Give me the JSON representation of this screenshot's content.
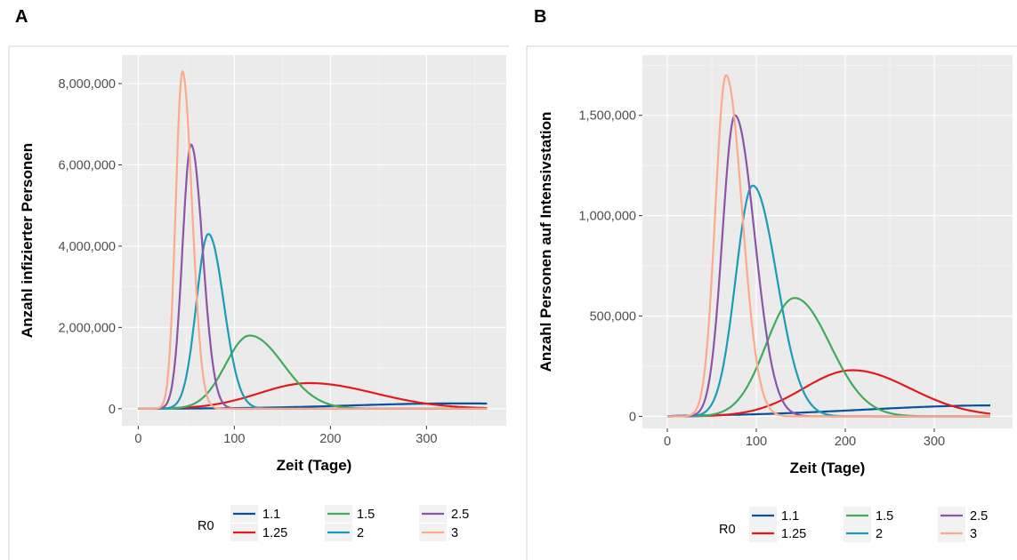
{
  "panels": [
    {
      "letter": "A"
    },
    {
      "letter": "B"
    }
  ],
  "chart_data": [
    {
      "type": "line",
      "panel": "A",
      "xlabel": "Zeit (Tage)",
      "ylabel": "Anzahl infizierter Personen",
      "xlim": [
        -17,
        383
      ],
      "ylim": [
        -420000,
        8700000
      ],
      "xticks": [
        0,
        100,
        200,
        300
      ],
      "xtick_labels": [
        "0",
        "100",
        "200",
        "300"
      ],
      "yticks": [
        0,
        2000000,
        4000000,
        6000000,
        8000000
      ],
      "ytick_labels": [
        "0",
        "2,000,000",
        "4,000,000",
        "6,000,000",
        "8,000,000"
      ],
      "grid": true,
      "legend": {
        "title": "R0",
        "position": "bottom"
      },
      "series": [
        {
          "name": "1.1",
          "color": "#08519c",
          "peak_x": 330,
          "peak_y": 130000,
          "sigma_left": 110,
          "sigma_right": 150
        },
        {
          "name": "1.25",
          "color": "#e31a1c",
          "peak_x": 178,
          "peak_y": 630000,
          "sigma_left": 52,
          "sigma_right": 68
        },
        {
          "name": "1.5",
          "color": "#41ab5d",
          "peak_x": 116,
          "peak_y": 1800000,
          "sigma_left": 25,
          "sigma_right": 35
        },
        {
          "name": "2",
          "color": "#1b9cb8",
          "peak_x": 73,
          "peak_y": 4300000,
          "sigma_left": 12.5,
          "sigma_right": 16
        },
        {
          "name": "2.5",
          "color": "#8b55a8",
          "peak_x": 55,
          "peak_y": 6500000,
          "sigma_left": 9,
          "sigma_right": 12
        },
        {
          "name": "3",
          "color": "#fcaa8a",
          "peak_x": 46,
          "peak_y": 8300000,
          "sigma_left": 7,
          "sigma_right": 10
        }
      ]
    },
    {
      "type": "line",
      "panel": "B",
      "xlabel": "Zeit (Tage)",
      "ylabel": "Anzahl Personen auf Intensivstation",
      "xlim": [
        -28,
        388
      ],
      "ylim": [
        -60000,
        1800000
      ],
      "xticks": [
        0,
        100,
        200,
        300
      ],
      "xtick_labels": [
        "0",
        "100",
        "200",
        "300"
      ],
      "yticks": [
        0,
        500000,
        1000000,
        1500000
      ],
      "ytick_labels": [
        "0",
        "500,000",
        "1,000,000",
        "1,500,000"
      ],
      "grid": true,
      "legend": {
        "title": "R0",
        "position": "bottom"
      },
      "series": [
        {
          "name": "1.1",
          "color": "#08519c",
          "peak_x": 370,
          "peak_y": 55000,
          "sigma_left": 150,
          "sigma_right": 80
        },
        {
          "name": "1.25",
          "color": "#e31a1c",
          "peak_x": 208,
          "peak_y": 230000,
          "sigma_left": 55,
          "sigma_right": 65
        },
        {
          "name": "1.5",
          "color": "#41ab5d",
          "peak_x": 143,
          "peak_y": 590000,
          "sigma_left": 32,
          "sigma_right": 40
        },
        {
          "name": "2",
          "color": "#1b9cb8",
          "peak_x": 96,
          "peak_y": 1150000,
          "sigma_left": 19,
          "sigma_right": 27
        },
        {
          "name": "2.5",
          "color": "#8b55a8",
          "peak_x": 76,
          "peak_y": 1500000,
          "sigma_left": 14,
          "sigma_right": 22
        },
        {
          "name": "3",
          "color": "#fcaa8a",
          "peak_x": 66,
          "peak_y": 1700000,
          "sigma_left": 12,
          "sigma_right": 18
        }
      ]
    }
  ]
}
